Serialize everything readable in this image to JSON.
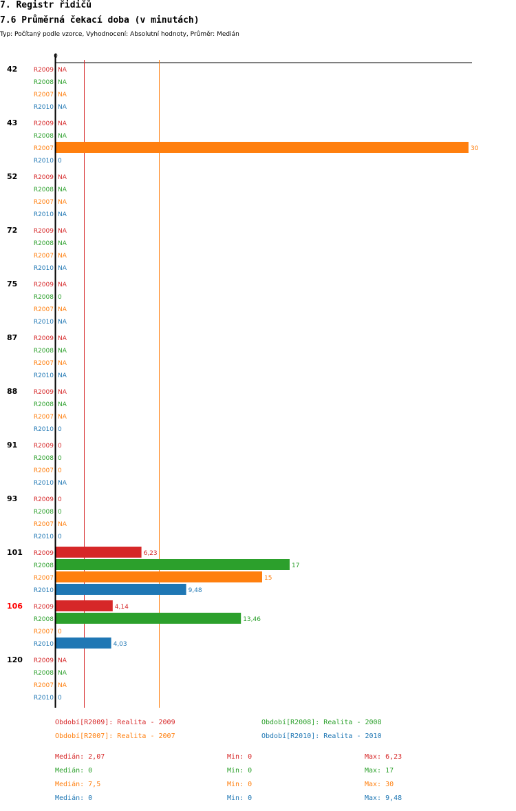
{
  "header": {
    "title": "7. Registr řidičů",
    "subtitle": "7.6 Průměrná čekací doba (v minutách)",
    "type_line": "Typ: Počítaný podle vzorce, Vyhodnocení: Absolutní hodnoty, Průměr: Medián"
  },
  "colors": {
    "R2009": "#d62728",
    "R2008": "#2ca02c",
    "R2007": "#ff7f0e",
    "R2010": "#1f77b4",
    "highlight": "#ff0000"
  },
  "chart_data": {
    "type": "bar",
    "orientation": "horizontal",
    "axis_zero_label": "0",
    "xlim": [
      0,
      30
    ],
    "reference_lines": [
      2.07,
      7.5
    ],
    "series_order": [
      "R2009",
      "R2008",
      "R2007",
      "R2010"
    ],
    "groups": [
      {
        "label": "42",
        "values": {
          "R2009": "NA",
          "R2008": "NA",
          "R2007": "NA",
          "R2010": "NA"
        }
      },
      {
        "label": "43",
        "values": {
          "R2009": "NA",
          "R2008": "NA",
          "R2007": "30",
          "R2010": "0"
        }
      },
      {
        "label": "52",
        "values": {
          "R2009": "NA",
          "R2008": "NA",
          "R2007": "NA",
          "R2010": "NA"
        }
      },
      {
        "label": "72",
        "values": {
          "R2009": "NA",
          "R2008": "NA",
          "R2007": "NA",
          "R2010": "NA"
        }
      },
      {
        "label": "75",
        "values": {
          "R2009": "NA",
          "R2008": "0",
          "R2007": "NA",
          "R2010": "NA"
        }
      },
      {
        "label": "87",
        "values": {
          "R2009": "NA",
          "R2008": "NA",
          "R2007": "NA",
          "R2010": "NA"
        }
      },
      {
        "label": "88",
        "values": {
          "R2009": "NA",
          "R2008": "NA",
          "R2007": "NA",
          "R2010": "0"
        }
      },
      {
        "label": "91",
        "values": {
          "R2009": "0",
          "R2008": "0",
          "R2007": "0",
          "R2010": "NA"
        }
      },
      {
        "label": "93",
        "values": {
          "R2009": "0",
          "R2008": "0",
          "R2007": "NA",
          "R2010": "0"
        }
      },
      {
        "label": "101",
        "values": {
          "R2009": "6,23",
          "R2008": "17",
          "R2007": "15",
          "R2010": "9,48"
        }
      },
      {
        "label": "106",
        "highlight": true,
        "values": {
          "R2009": "4,14",
          "R2008": "13,46",
          "R2007": "0",
          "R2010": "4,03"
        }
      },
      {
        "label": "120",
        "values": {
          "R2009": "NA",
          "R2008": "NA",
          "R2007": "NA",
          "R2010": "0"
        }
      }
    ]
  },
  "legend": [
    {
      "key": "R2009",
      "text": "Období[R2009]: Realita - 2009"
    },
    {
      "key": "R2008",
      "text": "Období[R2008]: Realita - 2008"
    },
    {
      "key": "R2007",
      "text": "Období[R2007]: Realita - 2007"
    },
    {
      "key": "R2010",
      "text": "Období[R2010]: Realita - 2010"
    }
  ],
  "stats": [
    {
      "key": "R2009",
      "median": "Medián: 2,07",
      "min": "Min: 0",
      "max": "Max: 6,23"
    },
    {
      "key": "R2008",
      "median": "Medián: 0",
      "min": "Min: 0",
      "max": "Max: 17"
    },
    {
      "key": "R2007",
      "median": "Medián: 7,5",
      "min": "Min: 0",
      "max": "Max: 30"
    },
    {
      "key": "R2010",
      "median": "Medián: 0",
      "min": "Min: 0",
      "max": "Max: 9,48"
    }
  ]
}
